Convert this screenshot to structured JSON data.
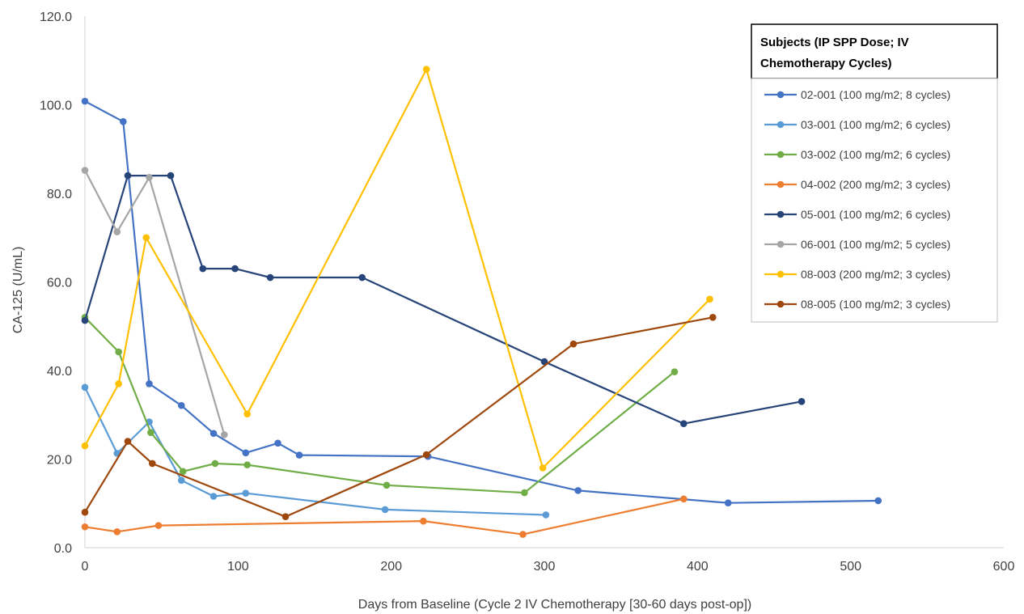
{
  "chart_data": {
    "type": "line",
    "title": "",
    "xlabel": "Days from Baseline (Cycle 2 IV Chemotherapy [30-60 days post-op])",
    "ylabel": "CA-125 (U/mL)",
    "xlim": [
      0,
      600
    ],
    "ylim": [
      0,
      120
    ],
    "x_ticks": [
      0,
      100,
      200,
      300,
      400,
      500,
      600
    ],
    "x_tick_labels": [
      "0",
      "100",
      "200",
      "300",
      "400",
      "500",
      "600"
    ],
    "y_ticks": [
      0,
      20,
      40,
      60,
      80,
      100,
      120
    ],
    "y_tick_labels": [
      "0.0",
      "20.0",
      "40.0",
      "60.0",
      "80.0",
      "100.0",
      "120.0"
    ],
    "grid": false,
    "legend": {
      "position": "top-right",
      "title_line1": "Subjects (IP SPP Dose; IV",
      "title_line2": "Chemotherapy Cycles)"
    },
    "series": [
      {
        "name": "02-001 (100 mg/m2; 8 cycles)",
        "color": "#4472C4",
        "x": [
          0,
          25,
          42,
          63,
          84,
          105,
          126,
          140,
          224,
          322,
          420,
          518
        ],
        "y": [
          100.8,
          96.2,
          37.0,
          32.1,
          25.8,
          21.4,
          23.6,
          20.9,
          20.6,
          12.9,
          10.1,
          10.6
        ]
      },
      {
        "name": "03-001 (100 mg/m2; 6 cycles)",
        "color": "#5B9BD5",
        "x": [
          0,
          21,
          42,
          63,
          84,
          105,
          196,
          301
        ],
        "y": [
          36.2,
          21.3,
          28.4,
          15.2,
          11.6,
          12.3,
          8.6,
          7.4
        ]
      },
      {
        "name": "03-002 (100 mg/m2; 6 cycles)",
        "color": "#70AD47",
        "x": [
          0,
          22,
          43,
          64,
          85,
          106,
          197,
          287,
          385
        ],
        "y": [
          52.0,
          44.2,
          26.0,
          17.2,
          19.0,
          18.7,
          14.1,
          12.4,
          39.7
        ]
      },
      {
        "name": "04-002 (200 mg/m2; 3 cycles)",
        "color": "#ED7D31",
        "x": [
          0,
          21,
          48,
          221,
          286,
          391
        ],
        "y": [
          4.7,
          3.6,
          5.0,
          6.0,
          3.0,
          11.0
        ]
      },
      {
        "name": "05-001 (100 mg/m2; 6 cycles)",
        "color": "#264478",
        "x": [
          0,
          28,
          56,
          77,
          98,
          121,
          181,
          300,
          391,
          468
        ],
        "y": [
          51.3,
          84.0,
          84.0,
          63.0,
          63.0,
          61.0,
          61.0,
          42.0,
          28.0,
          33.0
        ]
      },
      {
        "name": "06-001 (100 mg/m2; 5 cycles)",
        "color": "#A5A5A5",
        "x": [
          0,
          21,
          42,
          91
        ],
        "y": [
          85.2,
          71.3,
          83.6,
          25.5
        ]
      },
      {
        "name": "08-003 (200 mg/m2; 3 cycles)",
        "color": "#FFC000",
        "x": [
          0,
          22,
          40,
          106,
          223,
          299,
          408
        ],
        "y": [
          23.0,
          37.0,
          70.0,
          30.2,
          108.0,
          18.0,
          56.1
        ]
      },
      {
        "name": "08-005 (100 mg/m2; 3 cycles)",
        "color": "#9E480E",
        "x": [
          0,
          28,
          44,
          131,
          223,
          319,
          410
        ],
        "y": [
          8.0,
          24.0,
          19.0,
          7.0,
          21.0,
          46.0,
          52.0
        ]
      }
    ]
  }
}
